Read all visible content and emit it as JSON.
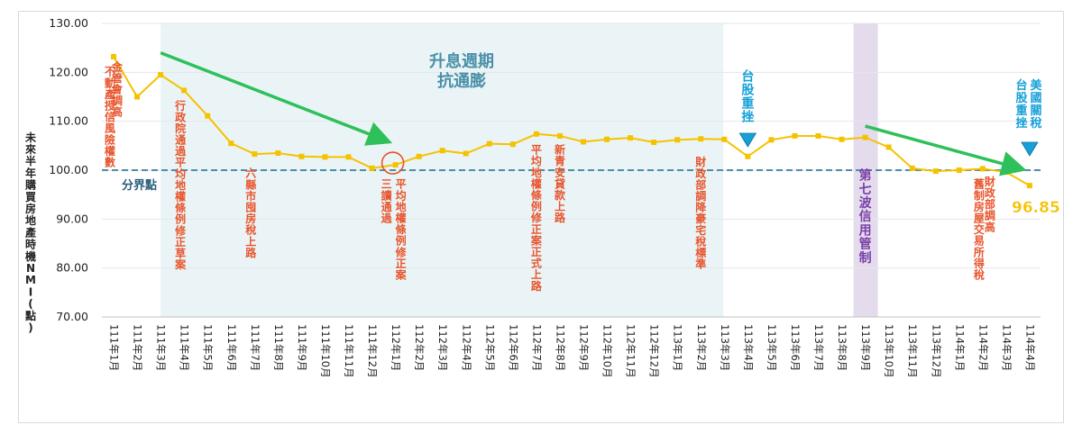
{
  "chart_data": {
    "type": "line",
    "ylabel": "未來半年購買房地產時機NMI(點)",
    "ylim": [
      70,
      130
    ],
    "yticks": [
      "70.00",
      "80.00",
      "90.00",
      "100.00",
      "110.00",
      "120.00",
      "130.00"
    ],
    "baseline": {
      "value": 100,
      "label": "分界點"
    },
    "categories": [
      "111年1月",
      "111年2月",
      "111年3月",
      "111年4月",
      "111年5月",
      "111年6月",
      "111年7月",
      "111年8月",
      "111年9月",
      "111年10月",
      "111年11月",
      "111年12月",
      "112年1月",
      "112年2月",
      "112年3月",
      "112年4月",
      "112年5月",
      "112年6月",
      "112年7月",
      "112年8月",
      "112年9月",
      "112年10月",
      "112年11月",
      "112年12月",
      "113年1月",
      "113年2月",
      "113年3月",
      "113年4月",
      "113年5月",
      "113年6月",
      "113年7月",
      "113年8月",
      "113年9月",
      "113年10月",
      "113年11月",
      "113年12月",
      "114年1月",
      "114年2月",
      "114年3月",
      "114年4月"
    ],
    "values": [
      123.2,
      115.0,
      119.5,
      116.3,
      111.1,
      105.5,
      103.3,
      103.5,
      102.8,
      102.7,
      102.7,
      100.4,
      101.1,
      102.8,
      104.0,
      103.4,
      105.4,
      105.3,
      107.4,
      107.0,
      105.8,
      106.3,
      106.6,
      105.7,
      106.2,
      106.4,
      106.3,
      102.8,
      106.2,
      107.0,
      107.0,
      106.3,
      106.7,
      104.7,
      100.4,
      99.8,
      100.0,
      100.3,
      99.6,
      96.85
    ],
    "last_value_label": "96.85",
    "colors": {
      "line": "#f5c200",
      "baseline": "#4a8fa8",
      "arrow": "#2ec05a",
      "events": "#e8542b",
      "band": "#eaf4f6",
      "band_text": "#4a8fa8",
      "purple_band": "#e4dced",
      "purple_text": "#7a3fa6",
      "marker_blue": "#15a0d8",
      "circle": "#e8542b"
    },
    "band": {
      "from": "111年3月",
      "to": "113年3月",
      "label_line1": "升息週期",
      "label_line2": "抗通膨"
    },
    "purple_band": {
      "at": "113年9月",
      "label": "第七波信用管制"
    },
    "events": [
      {
        "at": "111年1月",
        "col": 0,
        "offset": -4,
        "top_value": 121,
        "text": "不動產授信風險權數"
      },
      {
        "at": "111年1月",
        "col": 1,
        "offset": 4,
        "top_value": 122,
        "text": "金管會調高"
      },
      {
        "at": "111年4月",
        "col": 0,
        "offset": -4,
        "top_value": 114,
        "text": "行政院通過平均地權條例修正草案"
      },
      {
        "at": "111年7月",
        "col": 0,
        "offset": -4,
        "top_value": 100.2,
        "text": "六縣市囤房稅上路"
      },
      {
        "at": "112年1月",
        "col": 0,
        "offset": -10,
        "top_value": 98,
        "text": "三讀通過"
      },
      {
        "at": "112年1月",
        "col": 1,
        "offset": 6,
        "top_value": 98,
        "text": "平均地權條例修正案"
      },
      {
        "at": "112年7月",
        "col": 0,
        "offset": 0,
        "top_value": 105,
        "text": "平均地權條例修正案正式上路"
      },
      {
        "at": "112年8月",
        "col": 0,
        "offset": 0,
        "top_value": 105,
        "text": "新青安貸款上路"
      },
      {
        "at": "113年2月",
        "col": 0,
        "offset": 0,
        "top_value": 102.5,
        "text": "財政部調降豪宅稅標準"
      },
      {
        "at": "114年2月",
        "col": 0,
        "offset": -4,
        "top_value": 98,
        "text": "舊制房屋交易所得稅"
      },
      {
        "at": "114年2月",
        "col": 1,
        "offset": 8,
        "top_value": 98.5,
        "text": "財政部調高"
      }
    ],
    "markers": [
      {
        "at": "113年4月",
        "text": "台股重挫"
      },
      {
        "at": "114年4月",
        "text": "台股重挫",
        "text2": "美國關稅"
      }
    ],
    "circle_at": "112年1月",
    "arrows": [
      {
        "from": {
          "at": "111年3月",
          "value": 124
        },
        "to": {
          "at": "112年1月",
          "value": 106
        }
      },
      {
        "from": {
          "at": "113年9月",
          "value": 109
        },
        "to": {
          "at": "114年4月",
          "value": 100.3
        }
      }
    ]
  }
}
